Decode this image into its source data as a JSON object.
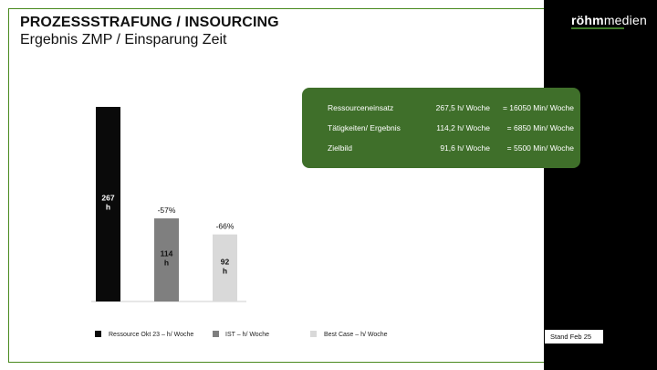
{
  "header": {
    "title": "PROZESSSTRAFUNG / INSOURCING",
    "subtitle": "Ergebnis ZMP / Einsparung Zeit"
  },
  "logo": {
    "bold": "röhm",
    "regular": "medien"
  },
  "info_box": {
    "rows": [
      {
        "label": "Ressourceneinsatz",
        "hours": "267,5 h/ Woche",
        "minutes": "= 16050 Min/ Woche"
      },
      {
        "label": "Tätigkeiten/ Ergebnis",
        "hours": "114,2 h/ Woche",
        "minutes": "= 6850 Min/ Woche"
      },
      {
        "label": "Zielbild",
        "hours": "91,6 h/ Woche",
        "minutes": "= 5500 Min/ Woche"
      }
    ]
  },
  "chart_data": {
    "type": "bar",
    "categories": [
      "Ressource Okt 23 – h/ Woche",
      "IST – h/ Woche",
      "Best Case – h/ Woche"
    ],
    "values": [
      267,
      114,
      92
    ],
    "bar_labels": [
      "267\nh",
      "114\nh",
      "92\nh"
    ],
    "change_labels": [
      "",
      "-57%",
      "-66%"
    ],
    "ylim": [
      0,
      267
    ],
    "grid": false,
    "legend_position": "bottom",
    "colors": [
      "#0a0a0a",
      "#7f7f7f",
      "#d9d9d9"
    ],
    "label_colors": [
      "#ffffff",
      "#111111",
      "#111111"
    ]
  },
  "footer": {
    "stand": "Stand Feb 25"
  },
  "colors": {
    "accent_green": "#3f6f2a",
    "frame_green": "#4a8a1f",
    "strip": "#000000"
  }
}
